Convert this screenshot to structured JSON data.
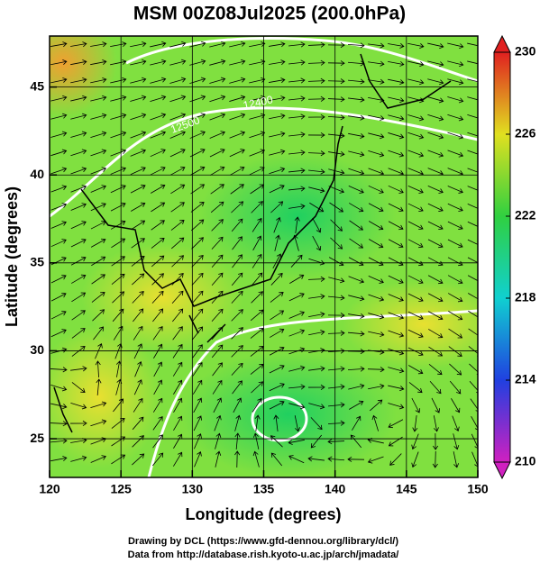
{
  "chart_data": {
    "type": "map",
    "title": "MSM 00Z08Jul2025 (200.0hPa)",
    "x_label": "Longitude (degrees)",
    "y_label": "Latitude  (degrees)",
    "xlim": [
      120,
      150
    ],
    "ylim": [
      22.8,
      47.9
    ],
    "xticks": [
      120,
      125,
      130,
      135,
      140,
      145,
      150
    ],
    "yticks": [
      25,
      30,
      35,
      40,
      45
    ],
    "grid": true,
    "contour_labels": [
      "12400",
      "12500"
    ],
    "colorbar": {
      "clim": [
        210,
        230
      ],
      "ticks": [
        210,
        214,
        218,
        222,
        226,
        230
      ],
      "colors": [
        "#d020c0",
        "#2040e0",
        "#10d0d0",
        "#30d040",
        "#e0e020",
        "#e02020"
      ]
    },
    "footer": [
      "Drawing by DCL (https://www.gfd-dennou.org/library/dcl/)",
      "Data from http://database.rish.kyoto-u.ac.jp/arch/jmadata/"
    ]
  }
}
